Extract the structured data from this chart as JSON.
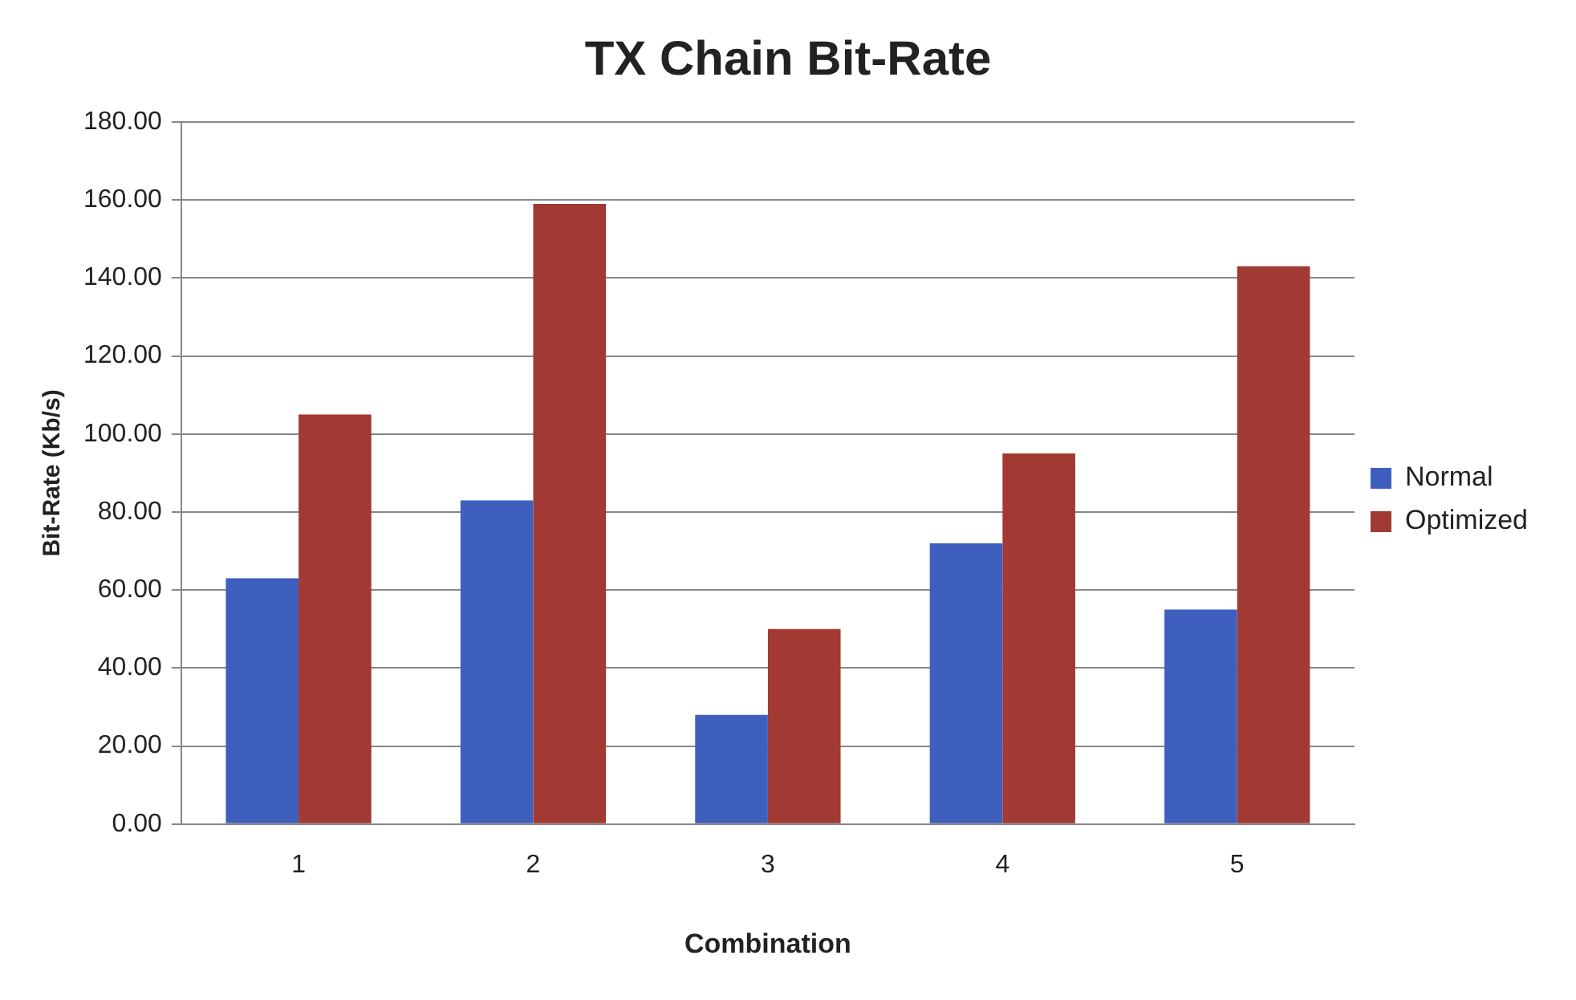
{
  "chart_data": {
    "type": "bar",
    "title": "TX Chain Bit-Rate",
    "xlabel": "Combination",
    "ylabel": "Bit-Rate (Kb/s)",
    "categories": [
      "1",
      "2",
      "3",
      "4",
      "5"
    ],
    "series": [
      {
        "name": "Normal",
        "color": "#3f5fbf",
        "values": [
          63,
          83,
          28,
          72,
          55
        ]
      },
      {
        "name": "Optimized",
        "color": "#a03a33",
        "values": [
          105,
          159,
          50,
          95,
          143
        ]
      }
    ],
    "ylim": [
      0,
      180
    ],
    "yticks": [
      {
        "value": 0,
        "label": "0.00"
      },
      {
        "value": 20,
        "label": "20.00"
      },
      {
        "value": 40,
        "label": "40.00"
      },
      {
        "value": 60,
        "label": "60.00"
      },
      {
        "value": 80,
        "label": "80.00"
      },
      {
        "value": 100,
        "label": "100.00"
      },
      {
        "value": 120,
        "label": "120.00"
      },
      {
        "value": 140,
        "label": "140.00"
      },
      {
        "value": 160,
        "label": "160.00"
      },
      {
        "value": 180,
        "label": "180.00"
      }
    ],
    "grid": "y",
    "legend": "right"
  }
}
